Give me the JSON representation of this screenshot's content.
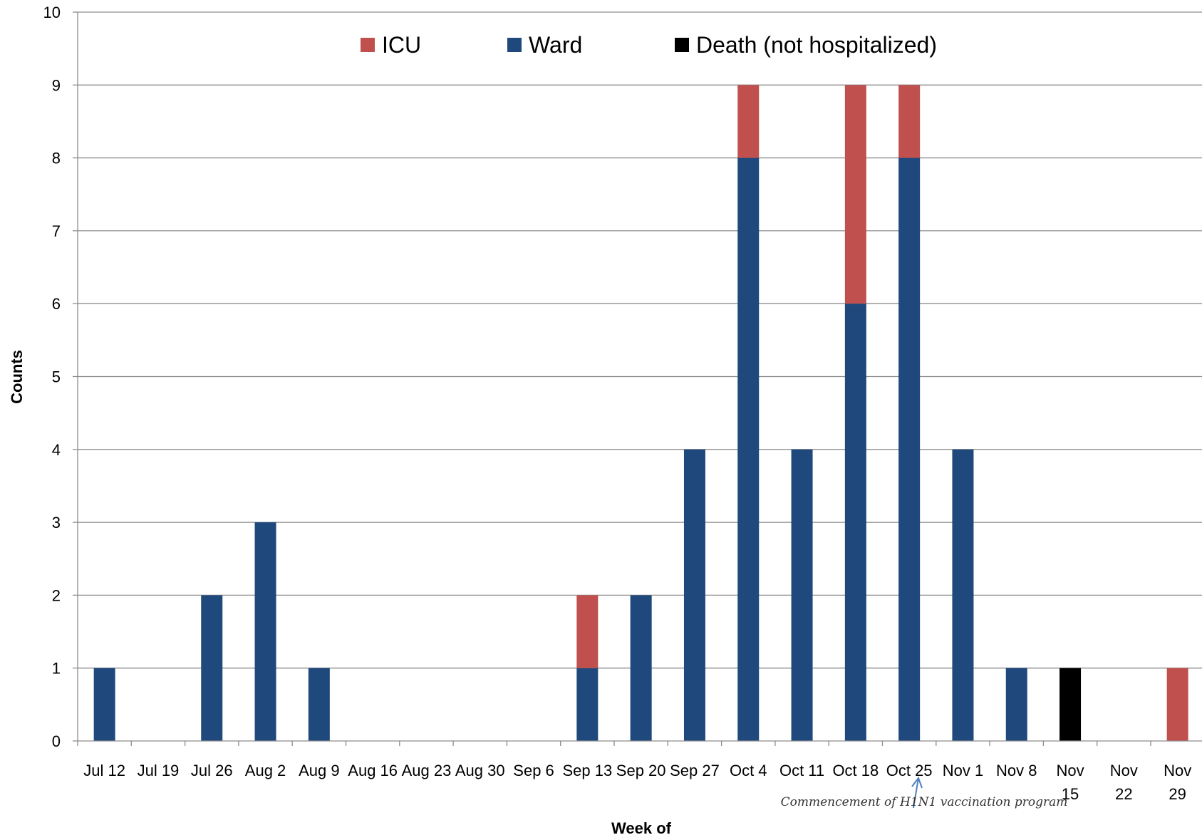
{
  "chart_data": {
    "type": "bar",
    "stacked": true,
    "title": "",
    "xlabel": "Week of",
    "ylabel": "Counts",
    "ylim": [
      0,
      10
    ],
    "yticks": [
      0,
      1,
      2,
      3,
      4,
      5,
      6,
      7,
      8,
      9,
      10
    ],
    "grid": true,
    "legend_position": "top",
    "categories": [
      "Jul 12",
      "Jul 19",
      "Jul 26",
      "Aug 2",
      "Aug 9",
      "Aug 16",
      "Aug 23",
      "Aug 30",
      "Sep 6",
      "Sep 13",
      "Sep 20",
      "Sep 27",
      "Oct 4",
      "Oct 11",
      "Oct 18",
      "Oct 25",
      "Nov 1",
      "Nov 8",
      "Nov 15",
      "Nov 22",
      "Nov 29"
    ],
    "series": [
      {
        "name": "ICU",
        "color": "#C0504D",
        "values": [
          0,
          0,
          0,
          0,
          0,
          0,
          0,
          0,
          0,
          1,
          0,
          0,
          1,
          0,
          3,
          1,
          0,
          0,
          0,
          0,
          1
        ]
      },
      {
        "name": "Ward",
        "color": "#1F497D",
        "values": [
          1,
          0,
          2,
          3,
          1,
          0,
          0,
          0,
          0,
          1,
          2,
          4,
          8,
          4,
          6,
          8,
          4,
          1,
          0,
          0,
          0
        ]
      },
      {
        "name": "Death (not hospitalized)",
        "color": "#000000",
        "values": [
          0,
          0,
          0,
          0,
          0,
          0,
          0,
          0,
          0,
          0,
          0,
          0,
          0,
          0,
          0,
          0,
          0,
          0,
          1,
          0,
          0
        ]
      }
    ],
    "stack_order": [
      "Death (not hospitalized)",
      "Ward",
      "ICU"
    ],
    "annotation": {
      "text": "Commencement of H1N1 vaccination program",
      "category": "Oct 25",
      "icon": "up-arrow-icon"
    },
    "grid_color": "#8C8C8C",
    "axis_color": "#8C8C8C"
  }
}
